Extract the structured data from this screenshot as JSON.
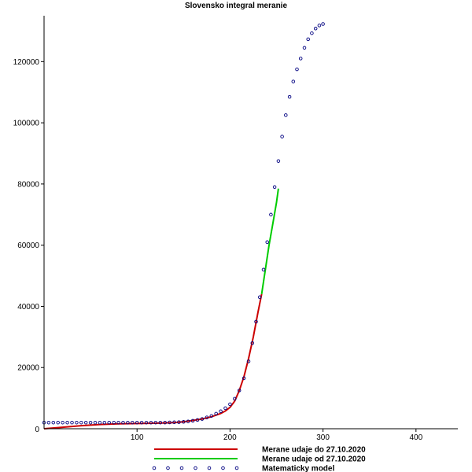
{
  "chart_data": {
    "type": "line",
    "title": "Slovensko integral meranie",
    "xlabel": "",
    "ylabel": "",
    "xlim": [
      0,
      445
    ],
    "ylim": [
      0,
      135000
    ],
    "x_ticks": [
      100,
      200,
      300,
      400
    ],
    "y_ticks": [
      20000,
      40000,
      60000,
      80000,
      100000,
      120000
    ],
    "x_tick_labels": [
      "100",
      "200",
      "300",
      "400"
    ],
    "y_tick_labels": [
      "20000",
      "40000",
      "60000",
      "80000",
      "100000",
      "120000"
    ],
    "origin_label": "0",
    "legend_position": "bottom",
    "series": [
      {
        "name": "Merane udaje do 27.10.2020",
        "style": "line",
        "color": "#cc0000",
        "x": [
          0,
          20,
          40,
          60,
          80,
          100,
          120,
          140,
          150,
          160,
          170,
          180,
          190,
          195,
          200,
          205,
          210,
          215,
          220,
          225,
          230,
          234
        ],
        "y": [
          0,
          500,
          1000,
          1400,
          1600,
          1700,
          1800,
          2000,
          2300,
          2700,
          3200,
          3900,
          5000,
          5800,
          7000,
          9000,
          12500,
          17000,
          23000,
          30000,
          38000,
          44000
        ]
      },
      {
        "name": "Merane  udaje od 27.10.2020",
        "style": "line",
        "color": "#00cc00",
        "x": [
          234,
          238,
          242,
          246,
          250,
          252
        ],
        "y": [
          44000,
          52000,
          60000,
          67000,
          74000,
          78500
        ]
      },
      {
        "name": "Matematicky model",
        "style": "points",
        "color": "#000080",
        "x": [
          0,
          5,
          10,
          15,
          20,
          25,
          30,
          35,
          40,
          45,
          50,
          55,
          60,
          65,
          70,
          75,
          80,
          85,
          90,
          95,
          100,
          105,
          110,
          115,
          120,
          125,
          130,
          135,
          140,
          145,
          150,
          155,
          160,
          165,
          170,
          175,
          180,
          185,
          190,
          195,
          200,
          205,
          210,
          215,
          220,
          224,
          228,
          232,
          236,
          240,
          244,
          248,
          252,
          256,
          260,
          264,
          268,
          272,
          276,
          280,
          284,
          288,
          292,
          296,
          300
        ],
        "y": [
          2000,
          2000,
          2000,
          2000,
          2000,
          2000,
          2000,
          2000,
          2000,
          2000,
          2000,
          2000,
          2000,
          2000,
          2000,
          2000,
          2000,
          2000,
          2000,
          2000,
          2000,
          2000,
          2000,
          2000,
          2000,
          2000,
          2000,
          2050,
          2100,
          2150,
          2250,
          2400,
          2600,
          2850,
          3200,
          3700,
          4200,
          4900,
          5700,
          6700,
          8000,
          9800,
          12500,
          16500,
          22000,
          28000,
          35000,
          43000,
          52000,
          61000,
          70000,
          79000,
          87500,
          95500,
          102500,
          108500,
          113500,
          117500,
          121000,
          124500,
          127300,
          129300,
          130800,
          131800,
          132300
        ]
      }
    ]
  }
}
